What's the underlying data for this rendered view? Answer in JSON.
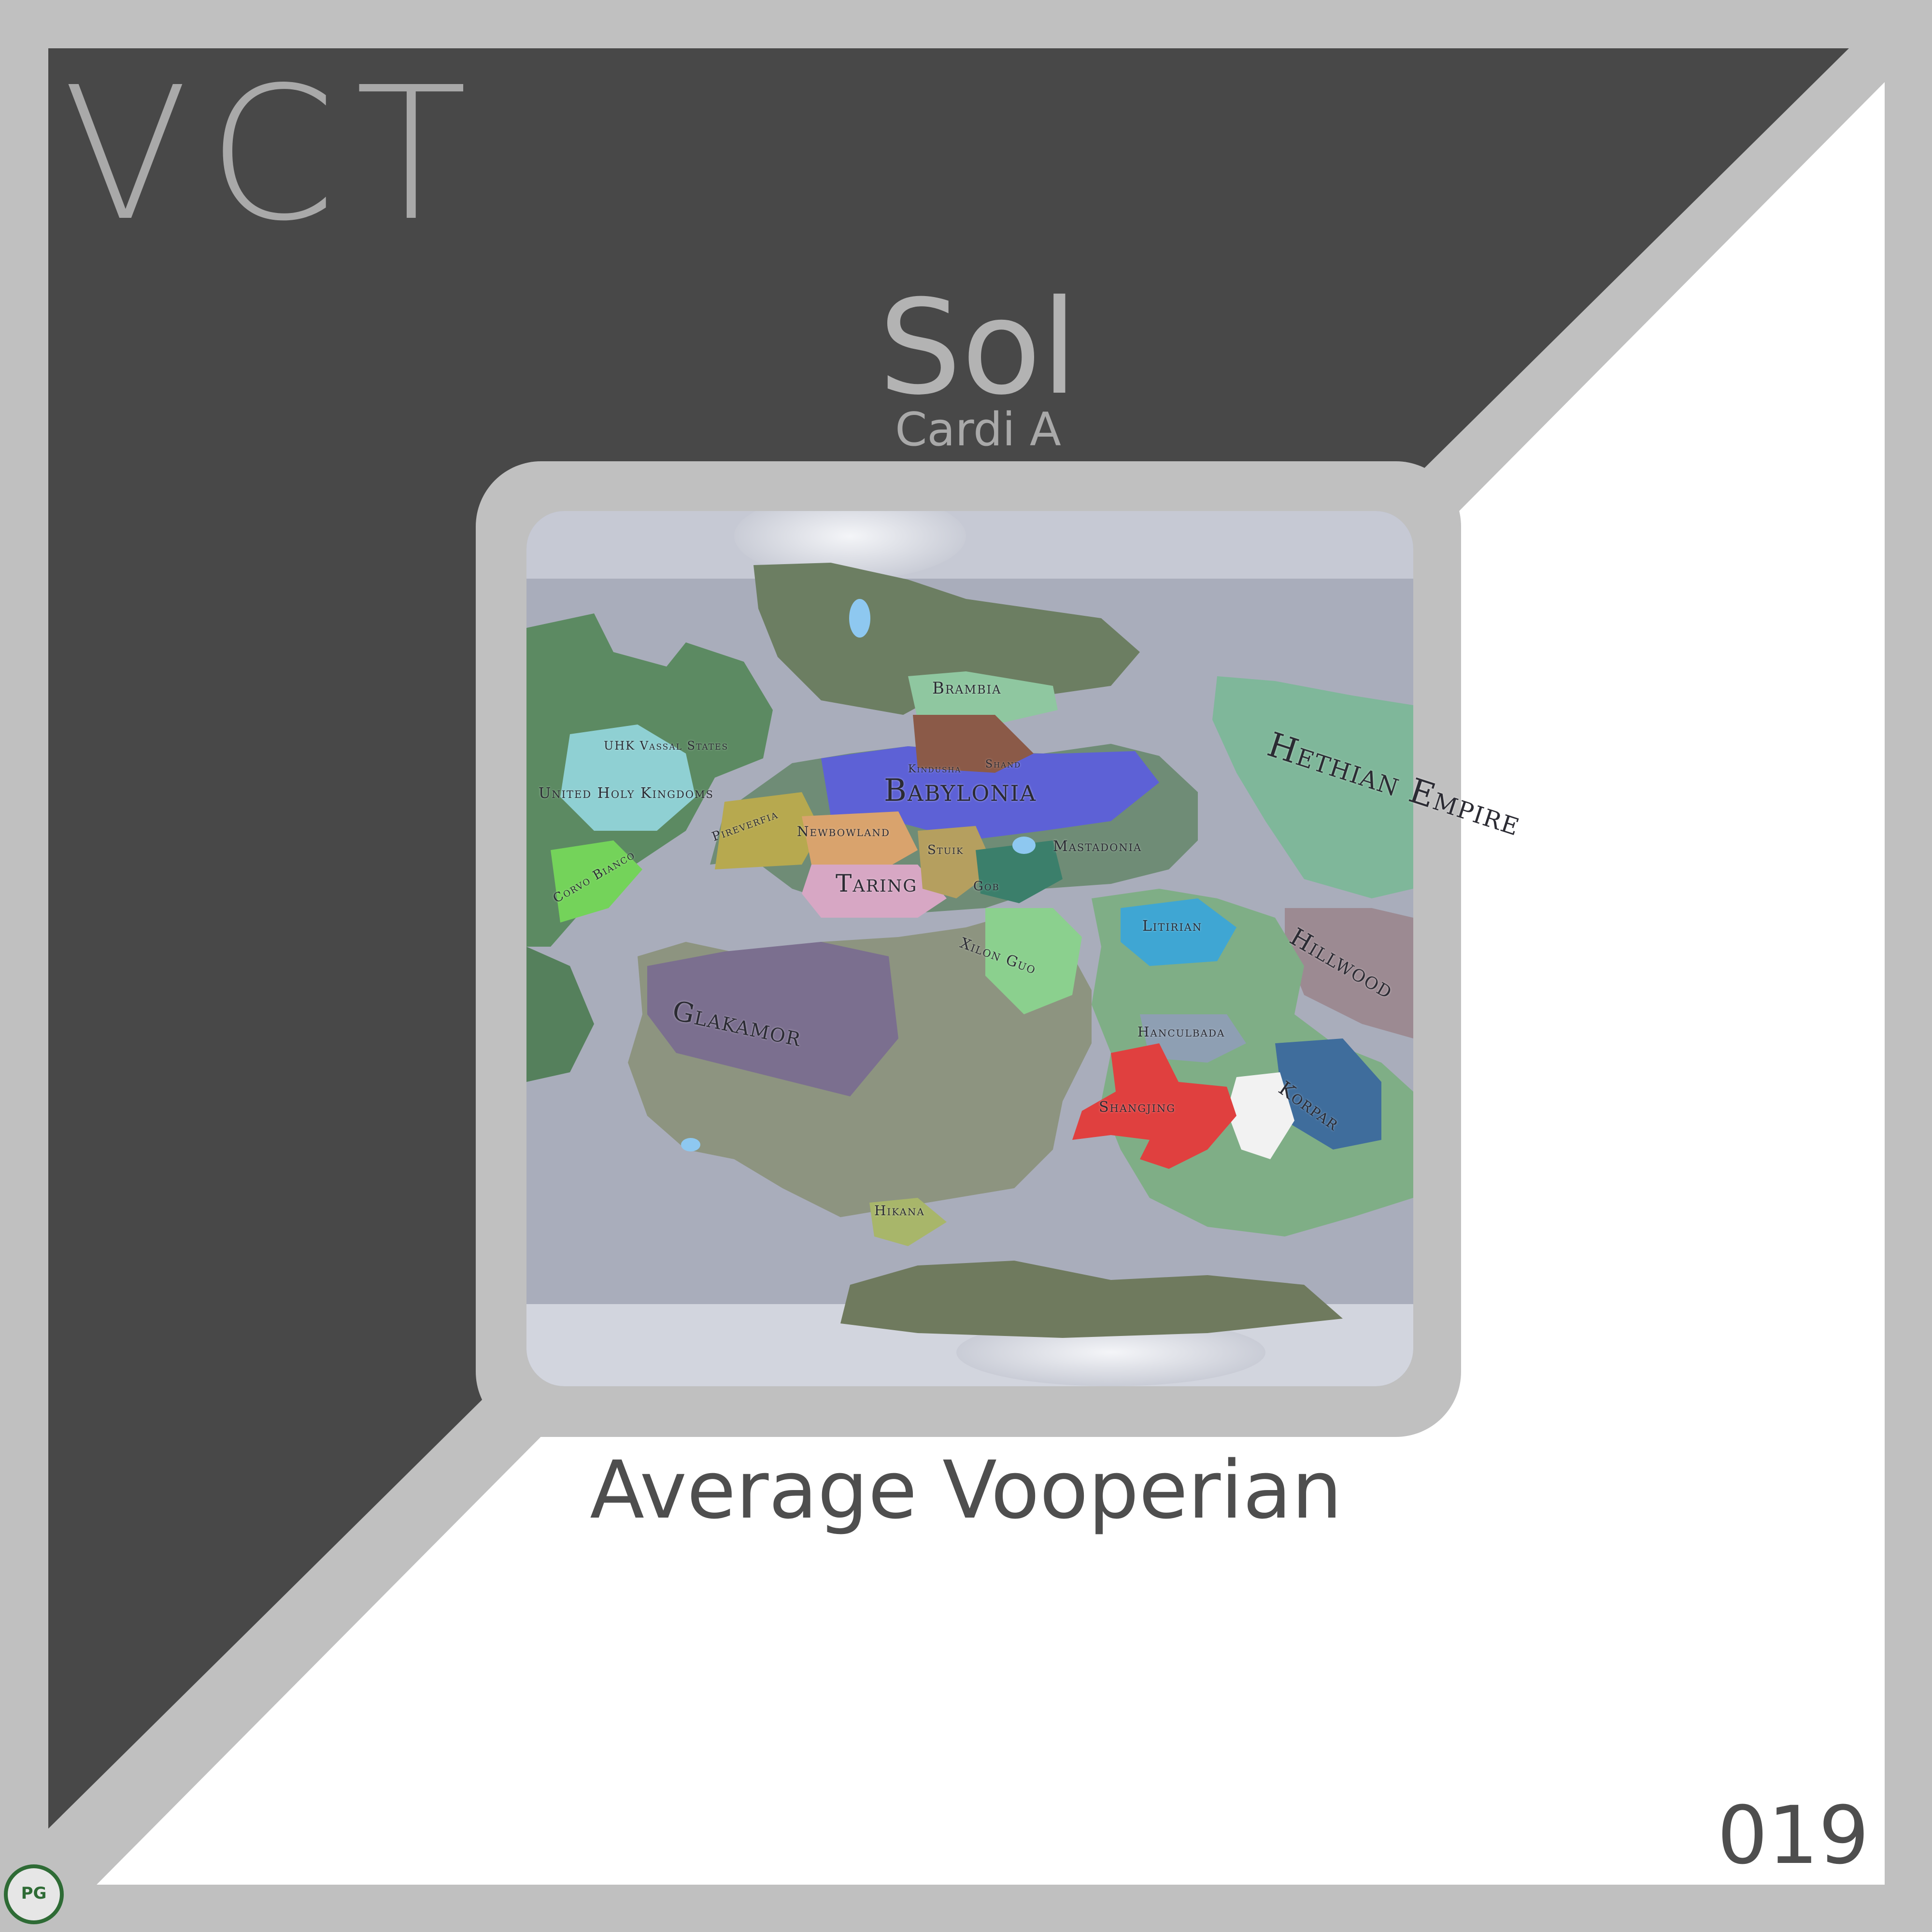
{
  "logo": {
    "text": "VCT"
  },
  "title": "Sol",
  "subtitle": "Cardi A",
  "caption": "Average Vooperian",
  "card_number": "019",
  "colors": {
    "dark_panel": "#484848",
    "frame": "#c0c0c0",
    "light_panel": "#ffffff",
    "text_dark": "#4e4e4e",
    "text_light": "#b3b3b3"
  },
  "map": {
    "labels": [
      "Brambia",
      "Kindusha",
      "Shand",
      "UHK Vassal States",
      "United Holy Kingdoms",
      "Babylonia",
      "Hethian Empire",
      "Pireverfia",
      "Newbowland",
      "Stuik",
      "Mastadonia",
      "Taring",
      "Gob",
      "Corvo Bianco",
      "Xilon Guo",
      "Litirian",
      "Hillwood",
      "Glakamor",
      "Hanculbada",
      "Korpar",
      "Shangjing",
      "Hikana"
    ]
  },
  "watermark": {
    "text": "PG"
  }
}
